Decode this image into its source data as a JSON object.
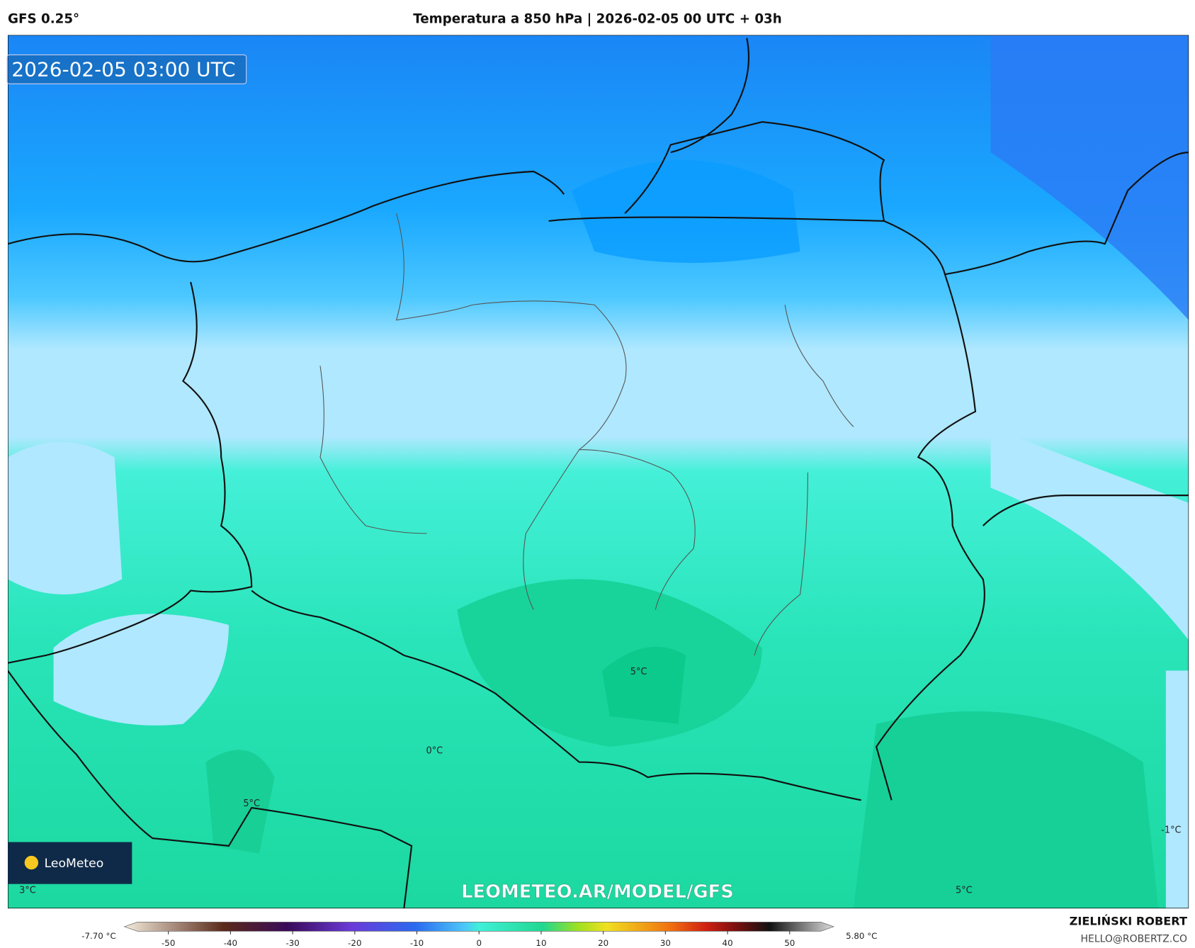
{
  "header": {
    "model": "GFS 0.25°",
    "title": "Temperatura a 850 hPa | 2026-02-05 00 UTC + 03h"
  },
  "map": {
    "timestamp": "2026-02-05 03:00 UTC",
    "watermark": "LEOMETEO.AR/MODEL/GFS",
    "logo": "LeoMeteo",
    "contour_labels": [
      "5°C",
      "0°C",
      "5°C",
      "-1°C",
      "3°C",
      "5°C"
    ]
  },
  "colorbar": {
    "range": [
      -55,
      55
    ],
    "ticks": [
      -50,
      -40,
      -30,
      -20,
      -10,
      0,
      10,
      20,
      30,
      40,
      50
    ],
    "min_label": "-7.70 °C",
    "max_label": "5.80 °C"
  },
  "credits": {
    "author": "ZIELIŃSKI ROBERT",
    "email": "HELLO@ROBERTZ.CO"
  }
}
